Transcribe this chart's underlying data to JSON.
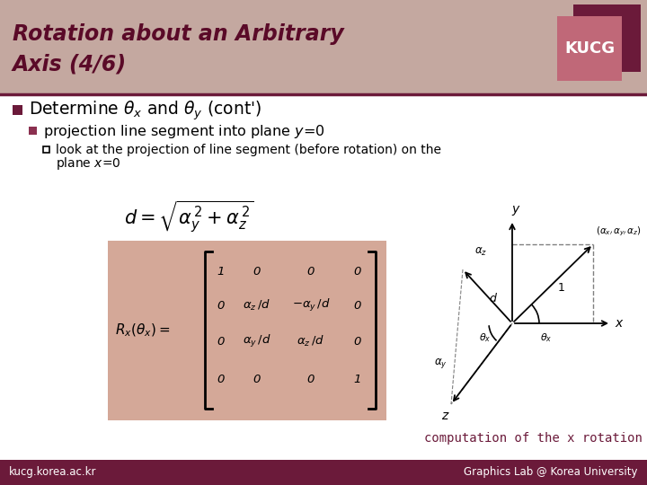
{
  "title_line1": "Rotation about an Arbitrary",
  "title_line2": "Axis (4/6)",
  "title_bg_color": "#c4a8a0",
  "title_text_color": "#5a0a28",
  "kucg_bg_dark": "#6b1a3a",
  "kucg_bg_light": "#c06878",
  "kucg_text": "KUCG",
  "matrix_bg": "#d4a898",
  "footer_bg": "#6b1a3a",
  "footer_left": "kucg.korea.ac.kr",
  "footer_right": "Graphics Lab @ Korea University",
  "caption": "computation of the x rotation",
  "bg_color": "#ffffff",
  "header_line_color": "#6b1a3a",
  "bullet1_color": "#6b1a3a",
  "bullet2_color": "#8b3050"
}
